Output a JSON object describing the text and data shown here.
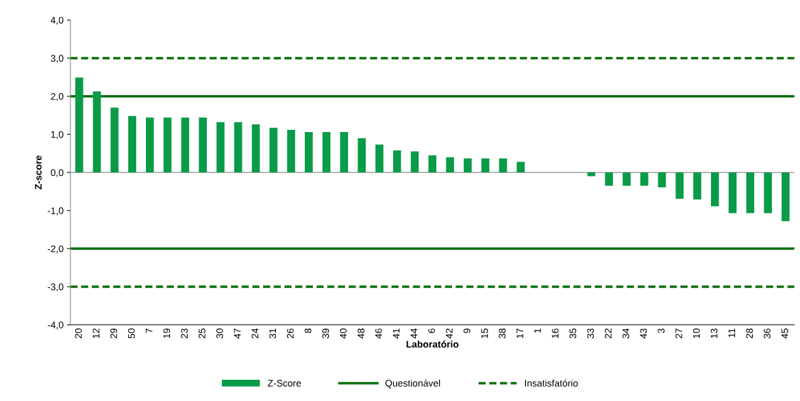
{
  "chart_data": {
    "type": "bar",
    "xlabel": "Laboratório",
    "ylabel": "Z-score",
    "categories": [
      "20",
      "12",
      "29",
      "50",
      "7",
      "19",
      "23",
      "25",
      "30",
      "47",
      "24",
      "31",
      "26",
      "8",
      "39",
      "40",
      "48",
      "46",
      "41",
      "44",
      "6",
      "42",
      "9",
      "15",
      "38",
      "17",
      "1",
      "16",
      "35",
      "33",
      "22",
      "34",
      "43",
      "3",
      "27",
      "10",
      "13",
      "11",
      "28",
      "36",
      "45"
    ],
    "series": [
      {
        "name": "Z-Score",
        "color": "#0a9a48",
        "values": [
          2.49,
          2.13,
          1.7,
          1.48,
          1.44,
          1.44,
          1.44,
          1.44,
          1.32,
          1.32,
          1.26,
          1.17,
          1.12,
          1.06,
          1.06,
          1.06,
          0.9,
          0.73,
          0.58,
          0.55,
          0.45,
          0.4,
          0.37,
          0.37,
          0.37,
          0.28,
          null,
          null,
          null,
          -0.1,
          -0.35,
          -0.35,
          -0.35,
          -0.39,
          -0.69,
          -0.71,
          -0.89,
          -1.07,
          -1.07,
          -1.07,
          -1.28
        ]
      }
    ],
    "ylim": [
      -4,
      4
    ],
    "yticks": [
      {
        "value": -4,
        "label": "-4,0"
      },
      {
        "value": -3,
        "label": "-3,0"
      },
      {
        "value": -2,
        "label": "-2,0"
      },
      {
        "value": -1,
        "label": "-1,0"
      },
      {
        "value": 0,
        "label": "0,0"
      },
      {
        "value": 1,
        "label": "1,0"
      },
      {
        "value": 2,
        "label": "2,0"
      },
      {
        "value": 3,
        "label": "3,0"
      },
      {
        "value": 4,
        "label": "4,0"
      }
    ],
    "ref_lines": [
      {
        "axis": "y",
        "value": 2,
        "label": "Questionável",
        "color": "#0b6e0b",
        "line_style": "solid"
      },
      {
        "axis": "y",
        "value": -2,
        "color": "#0b6e0b",
        "line_style": "solid"
      },
      {
        "axis": "y",
        "value": 3,
        "label": "Insatisfatório",
        "color": "#0b6e0b",
        "line_style": "dashed"
      },
      {
        "axis": "y",
        "value": -3,
        "color": "#0b6e0b",
        "line_style": "dashed"
      }
    ],
    "grid": false,
    "legend": "bottom"
  }
}
